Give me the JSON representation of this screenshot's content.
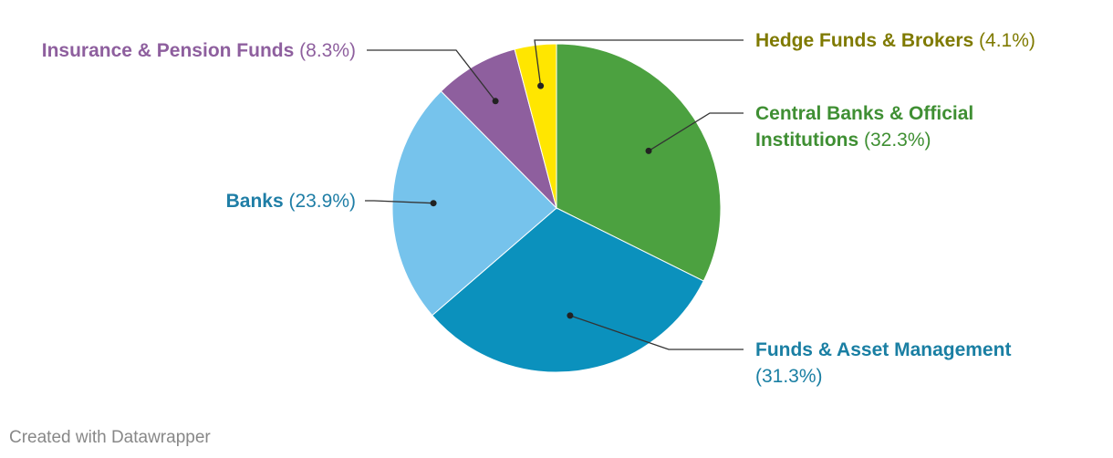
{
  "chart_data": {
    "type": "pie",
    "start_angle_deg": 0,
    "direction": "clockwise",
    "slices": [
      {
        "name": "Central Banks & Official Institutions",
        "name_lines": [
          "Central Banks & Official",
          "Institutions"
        ],
        "value": 32.3,
        "value_label": "(32.3%)",
        "color": "#4ca140",
        "label_color": "#3f8f33"
      },
      {
        "name": "Funds & Asset Management",
        "name_lines": [
          "Funds & Asset Management"
        ],
        "value": 31.3,
        "value_label": "(31.3%)",
        "color": "#0b91bd",
        "label_color": "#1a7fa3"
      },
      {
        "name": "Banks",
        "name_lines": [
          "Banks"
        ],
        "value": 23.9,
        "value_label": "(23.9%)",
        "color": "#76c3ec",
        "label_color": "#1f7ea6"
      },
      {
        "name": "Insurance & Pension Funds",
        "name_lines": [
          "Insurance & Pension Funds"
        ],
        "value": 8.3,
        "value_label": "(8.3%)",
        "color": "#8e5f9e",
        "label_color": "#8e5f9e"
      },
      {
        "name": "Hedge Funds & Brokers",
        "name_lines": [
          "Hedge Funds & Brokers"
        ],
        "value": 4.1,
        "value_label": "(4.1%)",
        "color": "#ffe600",
        "label_color": "#7f7a00"
      }
    ]
  },
  "footer": {
    "credit": "Created with Datawrapper"
  }
}
